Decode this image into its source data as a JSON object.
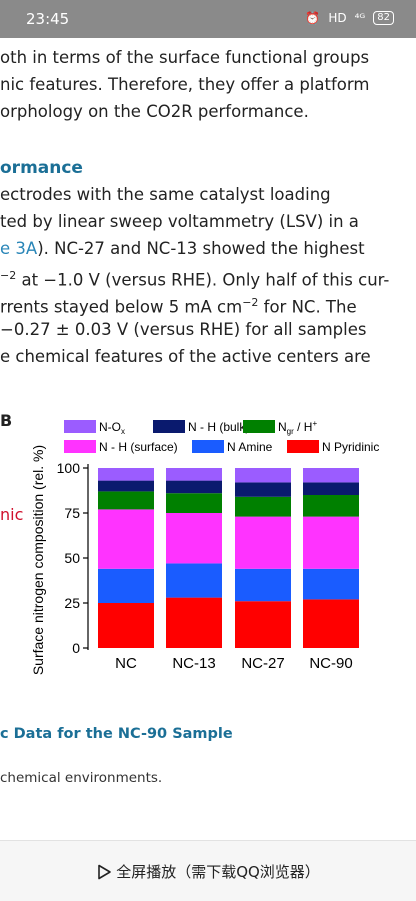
{
  "status_bar": {
    "time": "23:45",
    "network": "HD",
    "signal": "⁴ᴳ",
    "battery": "82"
  },
  "article": {
    "lines_top": [
      "oth in terms of the surface functional groups",
      "nic features. Therefore, they offer a platform",
      "orphology on the CO2R performance."
    ],
    "section_heading": "ormance",
    "body": {
      "l1": "ectrodes with the same catalyst loading",
      "l2": "ted by linear sweep voltammetry (LSV) in a",
      "l3_link": "e 3A",
      "l3_rest": "). NC-27 and NC-13 showed the highest",
      "l4_sup": "−2",
      "l4_rest": " at −1.0 V (versus RHE). Only half of this cur-",
      "l5_a": "rrents stayed below 5 mA cm",
      "l5_sup": "−2",
      "l5_b": " for NC. The",
      "l6": "−0.27 ± 0.03 V (versus RHE) for all samples",
      "l7": "e chemical features of the active centers are"
    },
    "fig_letter": "B",
    "side_note": "nic",
    "table_heading": "c Data for the NC-90 Sample",
    "caption": "chemical environments."
  },
  "chart_data": {
    "type": "bar",
    "stacked": true,
    "categories": [
      "NC",
      "NC-13",
      "NC-27",
      "NC-90"
    ],
    "ylabel": "Surface nitrogen composition (rel. %)",
    "ylim": [
      0,
      100
    ],
    "yticks": [
      0,
      25,
      50,
      75,
      100
    ],
    "colors": {
      "N Pyridinic": "#ff0000",
      "N Amine": "#1a5cff",
      "N - H (surface)": "#ff33ff",
      "N_gr / H+": "#008000",
      "N - H (bulk)": "#0a1a6e",
      "N-Ox": "#9b5cff"
    },
    "legend": [
      {
        "label": "N-O",
        "sub": "x",
        "sup": "",
        "series": "N-Ox"
      },
      {
        "label": "N - H (bulk)",
        "sub": "",
        "sup": "",
        "series": "N - H (bulk)"
      },
      {
        "label": "N",
        "sub": "gr",
        "sup": "",
        "after": " / H",
        "after_sup": "+",
        "series": "N_gr / H+"
      },
      {
        "label": "N - H (surface)",
        "sub": "",
        "sup": "",
        "series": "N - H (surface)"
      },
      {
        "label": "N Amine",
        "sub": "",
        "sup": "",
        "series": "N Amine"
      },
      {
        "label": "N Pyridinic",
        "sub": "",
        "sup": "",
        "series": "N Pyridinic"
      }
    ],
    "series": [
      {
        "name": "N Pyridinic",
        "values": [
          25,
          28,
          26,
          27
        ]
      },
      {
        "name": "N Amine",
        "values": [
          19,
          19,
          18,
          17
        ]
      },
      {
        "name": "N - H (surface)",
        "values": [
          33,
          28,
          29,
          29
        ]
      },
      {
        "name": "N_gr / H+",
        "values": [
          10,
          11,
          11,
          12
        ]
      },
      {
        "name": "N - H (bulk)",
        "values": [
          6,
          7,
          8,
          7
        ]
      },
      {
        "name": "N-Ox",
        "values": [
          7,
          7,
          8,
          8
        ]
      }
    ]
  },
  "bottom_bar": {
    "label": "全屏播放（需下载QQ浏览器）"
  }
}
